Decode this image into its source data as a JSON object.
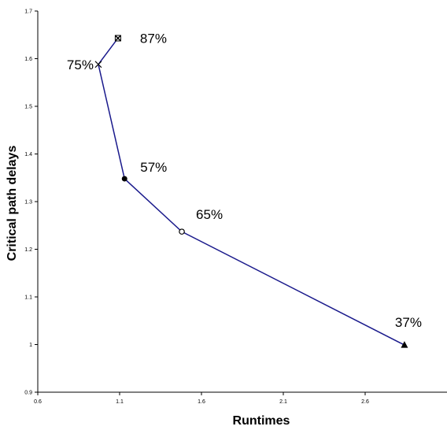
{
  "chart_data": {
    "type": "line",
    "title": "",
    "xlabel": "Runtimes",
    "ylabel": "Critical path delays",
    "xlim": [
      0.6,
      3.1
    ],
    "ylim": [
      0.9,
      1.7
    ],
    "xticks": [
      "0.6",
      "1.1",
      "1.6",
      "2.1",
      "2.6"
    ],
    "yticks": [
      "0.9",
      "1",
      "1.1",
      "1.2",
      "1.3",
      "1.4",
      "1.5",
      "1.6",
      "1.7"
    ],
    "grid": false,
    "legend": "none",
    "line_color": "#1a1a8c",
    "points": [
      {
        "x": 1.09,
        "y": 1.643,
        "marker": "boxed-x",
        "label": "87%"
      },
      {
        "x": 0.97,
        "y": 1.588,
        "marker": "x",
        "label": "75%"
      },
      {
        "x": 1.13,
        "y": 1.348,
        "marker": "filled-circle",
        "label": "57%"
      },
      {
        "x": 1.48,
        "y": 1.237,
        "marker": "open-circle",
        "label": "65%"
      },
      {
        "x": 2.84,
        "y": 0.999,
        "marker": "filled-triangle",
        "label": "37%"
      }
    ]
  }
}
